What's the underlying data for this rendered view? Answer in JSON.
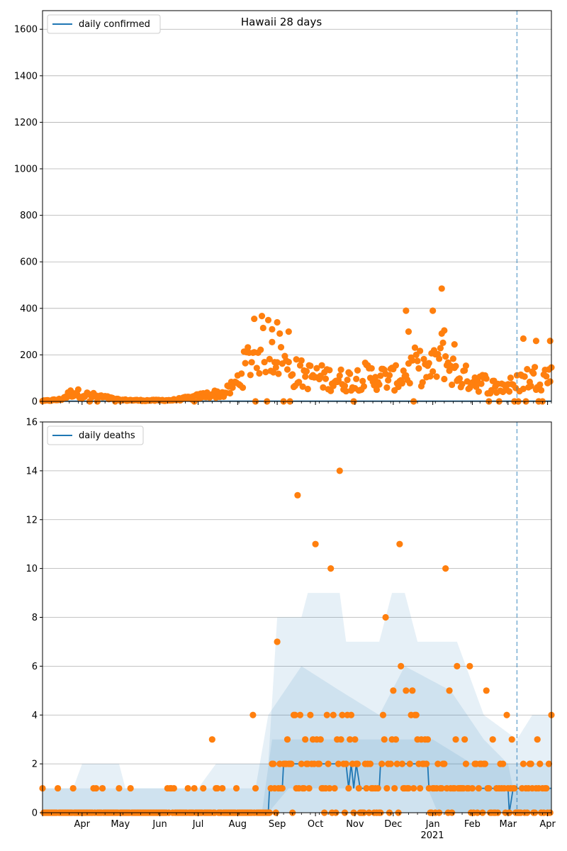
{
  "chart_data": [
    {
      "type": "scatter",
      "title": "Hawaii 28 days",
      "legend": {
        "placement": "top-left",
        "entries": [
          "daily confirmed"
        ]
      },
      "grid": "y",
      "ylim": [
        0,
        1680
      ],
      "yticks": [
        0,
        200,
        400,
        600,
        800,
        1000,
        1200,
        1400,
        1600
      ],
      "xlim": [
        "2020-03-01",
        "2021-04-04"
      ],
      "vline": "2021-03-08",
      "series": [
        {
          "name": "daily confirmed",
          "kind": "line",
          "flat_value": 1
        },
        {
          "name": "reported",
          "kind": "points",
          "anchors": [
            [
              "2020-03-01",
              2
            ],
            [
              "2020-03-15",
              8
            ],
            [
              "2020-03-25",
              40
            ],
            [
              "2020-04-01",
              30
            ],
            [
              "2020-04-15",
              20
            ],
            [
              "2020-04-30",
              6
            ],
            [
              "2020-05-20",
              4
            ],
            [
              "2020-06-10",
              5
            ],
            [
              "2020-06-25",
              15
            ],
            [
              "2020-07-10",
              30
            ],
            [
              "2020-07-22",
              35
            ],
            [
              "2020-07-30",
              70
            ],
            [
              "2020-08-08",
              160
            ],
            [
              "2020-08-15",
              230
            ],
            [
              "2020-08-25",
              250
            ],
            [
              "2020-09-01",
              220
            ],
            [
              "2020-09-10",
              130
            ],
            [
              "2020-09-25",
              110
            ],
            [
              "2020-10-10",
              100
            ],
            [
              "2020-10-25",
              90
            ],
            [
              "2020-11-10",
              110
            ],
            [
              "2020-11-25",
              100
            ],
            [
              "2020-12-05",
              100
            ],
            [
              "2020-12-18",
              150
            ],
            [
              "2020-12-30",
              130
            ],
            [
              "2021-01-08",
              200
            ],
            [
              "2021-01-20",
              110
            ],
            [
              "2021-02-05",
              90
            ],
            [
              "2021-02-20",
              60
            ],
            [
              "2021-03-05",
              70
            ],
            [
              "2021-03-15",
              100
            ],
            [
              "2021-04-04",
              110
            ]
          ]
        }
      ],
      "outliers": [
        [
          "2020-08-14",
          355
        ],
        [
          "2020-08-28",
          310
        ],
        [
          "2020-09-01",
          340
        ],
        [
          "2020-09-10",
          300
        ],
        [
          "2020-12-11",
          390
        ],
        [
          "2020-12-13",
          300
        ],
        [
          "2021-01-01",
          390
        ],
        [
          "2021-01-08",
          485
        ],
        [
          "2021-01-10",
          305
        ],
        [
          "2021-01-18",
          245
        ],
        [
          "2021-03-13",
          270
        ],
        [
          "2021-03-23",
          260
        ],
        [
          "2021-04-03",
          260
        ]
      ]
    },
    {
      "type": "scatter",
      "legend": {
        "placement": "top-left",
        "entries": [
          "daily deaths"
        ]
      },
      "grid": "y",
      "ylim": [
        0,
        16
      ],
      "yticks": [
        0,
        2,
        4,
        6,
        8,
        10,
        12,
        14,
        16
      ],
      "xlim": [
        "2020-03-01",
        "2021-04-04"
      ],
      "xticks": [
        "2020-04-01",
        "2020-05-01",
        "2020-06-01",
        "2020-07-01",
        "2020-08-01",
        "2020-09-01",
        "2020-10-01",
        "2020-11-01",
        "2020-12-01",
        "2021-01-01",
        "2021-02-01",
        "2021-03-01",
        "2021-04-01"
      ],
      "xticklabels": [
        "Apr",
        "May",
        "Jun",
        "Jul",
        "Aug",
        "Sep",
        "Oct",
        "Nov",
        "Dec",
        "Jan",
        "Feb",
        "Mar",
        "Apr"
      ],
      "xticklabel_year": "2021",
      "vline": "2021-03-08",
      "series": [
        {
          "name": "daily deaths",
          "kind": "line",
          "points": [
            [
              "2020-03-01",
              0
            ],
            [
              "2020-08-25",
              0
            ],
            [
              "2020-08-26",
              1
            ],
            [
              "2020-09-05",
              1
            ],
            [
              "2020-09-06",
              2
            ],
            [
              "2020-10-25",
              2
            ],
            [
              "2020-10-27",
              1
            ],
            [
              "2020-10-29",
              2
            ],
            [
              "2020-10-31",
              1
            ],
            [
              "2020-11-02",
              2
            ],
            [
              "2020-11-05",
              1
            ],
            [
              "2020-11-20",
              1
            ],
            [
              "2020-11-21",
              2
            ],
            [
              "2020-12-28",
              2
            ],
            [
              "2020-12-29",
              1
            ],
            [
              "2021-03-01",
              1
            ],
            [
              "2021-03-02",
              0
            ],
            [
              "2021-03-05",
              1
            ],
            [
              "2021-04-04",
              1
            ]
          ]
        }
      ],
      "bands": [
        {
          "lo": [
            [
              "2020-03-01",
              0
            ],
            [
              "2021-04-04",
              0
            ]
          ],
          "hi": [
            [
              "2020-03-01",
              1
            ],
            [
              "2020-03-25",
              1
            ],
            [
              "2020-04-01",
              2
            ],
            [
              "2020-04-30",
              2
            ],
            [
              "2020-05-05",
              1
            ],
            [
              "2020-07-01",
              1
            ],
            [
              "2020-07-15",
              2
            ],
            [
              "2020-08-25",
              2
            ],
            [
              "2020-09-01",
              8
            ],
            [
              "2020-09-20",
              8
            ],
            [
              "2020-09-25",
              9
            ],
            [
              "2020-10-20",
              9
            ],
            [
              "2020-10-25",
              7
            ],
            [
              "2020-11-20",
              7
            ],
            [
              "2020-11-30",
              9
            ],
            [
              "2020-12-10",
              9
            ],
            [
              "2020-12-20",
              7
            ],
            [
              "2021-01-20",
              7
            ],
            [
              "2021-02-10",
              4
            ],
            [
              "2021-03-08",
              3
            ],
            [
              "2021-03-20",
              4
            ],
            [
              "2021-04-04",
              4
            ]
          ]
        },
        {
          "lo": [
            [
              "2020-03-01",
              0
            ],
            [
              "2021-04-04",
              0
            ]
          ],
          "hi": [
            [
              "2020-03-01",
              1
            ],
            [
              "2020-08-15",
              1
            ],
            [
              "2020-08-25",
              4
            ],
            [
              "2020-09-20",
              6
            ],
            [
              "2020-10-20",
              5
            ],
            [
              "2020-11-20",
              4
            ],
            [
              "2020-12-10",
              6
            ],
            [
              "2021-01-15",
              5
            ],
            [
              "2021-02-10",
              3
            ],
            [
              "2021-03-01",
              2
            ],
            [
              "2021-04-04",
              2
            ]
          ]
        },
        {
          "lo": [
            [
              "2020-03-01",
              0
            ],
            [
              "2020-08-25",
              0
            ],
            [
              "2020-09-10",
              1
            ],
            [
              "2020-12-28",
              1
            ],
            [
              "2021-01-05",
              0
            ],
            [
              "2021-04-04",
              0
            ]
          ],
          "hi": [
            [
              "2020-03-01",
              0
            ],
            [
              "2020-08-20",
              0
            ],
            [
              "2020-08-28",
              3
            ],
            [
              "2020-10-10",
              3
            ],
            [
              "2020-11-10",
              3
            ],
            [
              "2020-12-10",
              3
            ],
            [
              "2021-01-01",
              3
            ],
            [
              "2021-02-01",
              2
            ],
            [
              "2021-03-01",
              2
            ],
            [
              "2021-03-05",
              1
            ],
            [
              "2021-04-04",
              1
            ]
          ]
        }
      ],
      "outliers": [
        [
          "2020-07-12",
          3
        ],
        [
          "2020-08-13",
          4
        ],
        [
          "2020-09-01",
          7
        ],
        [
          "2020-09-15",
          4
        ],
        [
          "2020-09-17",
          13
        ],
        [
          "2020-09-27",
          4
        ],
        [
          "2020-10-01",
          11
        ],
        [
          "2020-10-13",
          10
        ],
        [
          "2020-10-20",
          14
        ],
        [
          "2020-10-29",
          4
        ],
        [
          "2020-11-25",
          8
        ],
        [
          "2020-12-01",
          5
        ],
        [
          "2020-12-06",
          11
        ],
        [
          "2020-12-07",
          6
        ],
        [
          "2020-12-11",
          5
        ],
        [
          "2020-12-16",
          5
        ],
        [
          "2021-01-11",
          10
        ],
        [
          "2021-01-14",
          5
        ],
        [
          "2021-01-20",
          6
        ],
        [
          "2021-01-30",
          6
        ],
        [
          "2021-02-12",
          5
        ],
        [
          "2021-02-28",
          4
        ],
        [
          "2021-04-04",
          4
        ]
      ]
    }
  ]
}
